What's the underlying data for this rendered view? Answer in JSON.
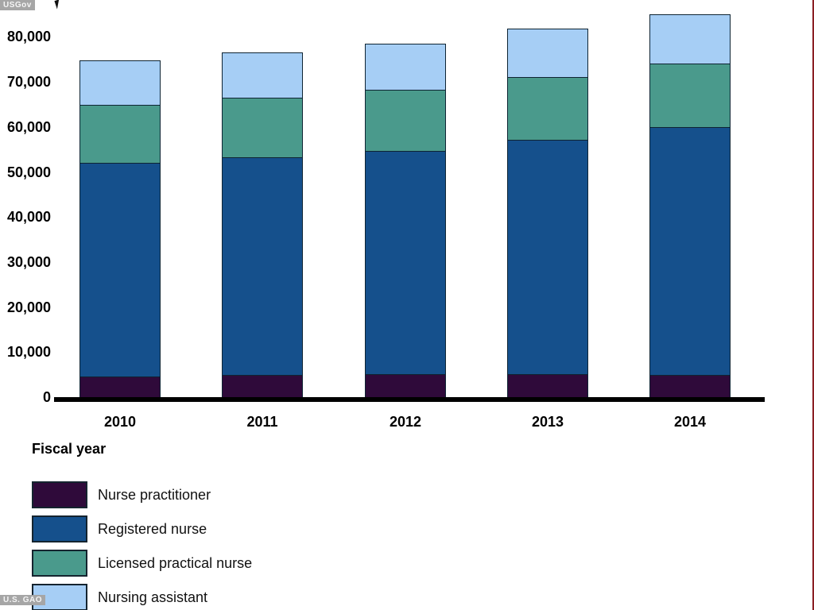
{
  "watermarks": {
    "top_left": "USGov",
    "bottom_left": "U.S. GAO"
  },
  "colors": {
    "nurse_practitioner": "#2f0a3a",
    "registered_nurse": "#15508c",
    "licensed_practical_nurse": "#4a9a8c",
    "nursing_assistant": "#a6cef5",
    "segment_border": "#0e2433",
    "axis_line": "#000000",
    "right_edge_line": "#8b1f24",
    "badge_background": "#a6a6a6"
  },
  "chart_data": {
    "type": "bar",
    "stacked": true,
    "title": "",
    "xlabel": "Fiscal year",
    "ylabel": "",
    "grid": false,
    "legend_position": "bottom-left",
    "categories": [
      "2010",
      "2011",
      "2012",
      "2013",
      "2014"
    ],
    "series": [
      {
        "name": "Nurse practitioner",
        "color": "#2f0a3a",
        "values": [
          4400,
          4700,
          4900,
          5000,
          4700
        ]
      },
      {
        "name": "Registered nurse",
        "color": "#15508c",
        "values": [
          47500,
          48300,
          49600,
          52000,
          55100
        ]
      },
      {
        "name": "Licensed practical nurse",
        "color": "#4a9a8c",
        "values": [
          12900,
          13300,
          13600,
          13900,
          14100
        ]
      },
      {
        "name": "Nursing assistant",
        "color": "#a6cef5",
        "values": [
          10000,
          10200,
          10400,
          10900,
          11100
        ]
      }
    ],
    "totals": [
      74800,
      76500,
      78500,
      81800,
      85000
    ],
    "ylim": [
      0,
      88000
    ],
    "y_ticks": [
      {
        "value": 0,
        "label": "0"
      },
      {
        "value": 10000,
        "label": "10,000"
      },
      {
        "value": 20000,
        "label": "20,000"
      },
      {
        "value": 30000,
        "label": "30,000"
      },
      {
        "value": 40000,
        "label": "40,000"
      },
      {
        "value": 50000,
        "label": "50,000"
      },
      {
        "value": 60000,
        "label": "60,000"
      },
      {
        "value": 70000,
        "label": "70,000"
      },
      {
        "value": 80000,
        "label": "80,000"
      }
    ]
  }
}
